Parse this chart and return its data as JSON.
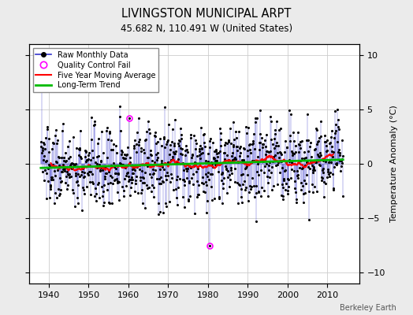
{
  "title": "LIVINGSTON MUNICIPAL ARPT",
  "subtitle": "45.682 N, 110.491 W (United States)",
  "ylabel": "Temperature Anomaly (°C)",
  "credit": "Berkeley Earth",
  "xlim": [
    1935,
    2018
  ],
  "ylim": [
    -11,
    11
  ],
  "yticks": [
    -10,
    -5,
    0,
    5,
    10
  ],
  "xticks": [
    1940,
    1950,
    1960,
    1970,
    1980,
    1990,
    2000,
    2010
  ],
  "bg_color": "#ebebeb",
  "plot_bg_color": "#ffffff",
  "raw_line_color": "#3333cc",
  "raw_dot_color": "#000000",
  "qc_fail_color": "#ff00ff",
  "moving_avg_color": "#ff0000",
  "trend_color": "#00bb00",
  "seed": 137,
  "n_years": 76,
  "start_year": 1938,
  "qc_fail_points": [
    [
      1960.25,
      4.2
    ],
    [
      1980.5,
      -7.5
    ]
  ]
}
